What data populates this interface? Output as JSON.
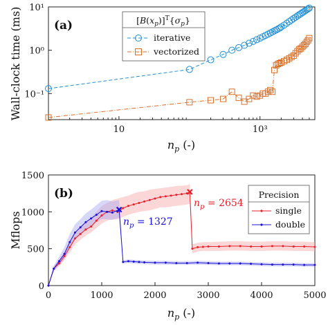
{
  "figure": {
    "panels": [
      {
        "panel_label": "(a)",
        "ylabel": "Wall-clock time (ms)",
        "xlabel": "n_p (-)",
        "legend_title": "[B(x_p)]^T{σ_p}",
        "x_ticks": [
          "10",
          "10³"
        ],
        "x_tick_values": [
          10,
          1000
        ],
        "y_ticks": [
          "10⁻¹",
          "10⁰",
          "10¹"
        ],
        "y_tick_values": [
          0.1,
          1,
          10
        ]
      },
      {
        "panel_label": "(b)",
        "ylabel": "Mflops",
        "xlabel": "n_p (-)",
        "legend_title": "Precision",
        "x_ticks": [
          "0",
          "1000",
          "2000",
          "3000",
          "4000",
          "5000"
        ],
        "y_ticks": [
          "0",
          "500",
          "1000",
          "1500"
        ],
        "annotations": [
          {
            "text": "n_p = 1327",
            "color": "#1a10d8"
          },
          {
            "text": "n_p = 2654",
            "color": "#e8202a"
          }
        ]
      }
    ]
  },
  "chart_data": [
    {
      "type": "line",
      "panel": "(a)",
      "xscale": "log",
      "yscale": "log",
      "xlim": [
        1,
        6000
      ],
      "ylim": [
        0.025,
        10
      ],
      "xlabel": "n_p (-)",
      "ylabel": "Wall-clock time (ms)",
      "legend_title": "[B(x_p)]^T{σ_p}",
      "legend_position": "top-left",
      "series": [
        {
          "name": "iterative",
          "color": "#1f8fd6",
          "marker": "circle",
          "x": [
            1,
            100,
            200,
            300,
            400,
            500,
            600,
            700,
            800,
            900,
            1000,
            1100,
            1200,
            1300,
            1400,
            1500,
            1600,
            1700,
            1800,
            1900,
            2000,
            2200,
            2400,
            2600,
            2800,
            3000,
            3200,
            3400,
            3600,
            3800,
            4000,
            4200,
            4400,
            4600,
            4800,
            5000
          ],
          "y": [
            0.13,
            0.36,
            0.6,
            0.8,
            1.0,
            1.15,
            1.3,
            1.45,
            1.6,
            1.75,
            1.9,
            2.05,
            2.2,
            2.35,
            2.5,
            2.65,
            2.8,
            2.95,
            3.1,
            3.25,
            3.45,
            3.8,
            4.2,
            4.6,
            5.0,
            5.4,
            5.8,
            6.2,
            6.6,
            7.0,
            7.4,
            7.8,
            8.2,
            8.6,
            9.0,
            9.4
          ]
        },
        {
          "name": "vectorized",
          "color": "#d9702a",
          "marker": "square",
          "x": [
            1,
            100,
            200,
            300,
            400,
            500,
            600,
            700,
            800,
            900,
            1000,
            1100,
            1200,
            1300,
            1400,
            1500,
            1600,
            1700,
            1800,
            1900,
            2000,
            2200,
            2400,
            2600,
            2800,
            3000,
            3200,
            3400,
            3600,
            3800,
            4000,
            4200,
            4400,
            4600,
            4800,
            5000
          ],
          "y": [
            0.028,
            0.063,
            0.07,
            0.075,
            0.11,
            0.08,
            0.065,
            0.075,
            0.09,
            0.085,
            0.09,
            0.1,
            0.1,
            0.11,
            0.12,
            0.11,
            0.35,
            0.45,
            0.48,
            0.5,
            0.52,
            0.56,
            0.6,
            0.65,
            0.7,
            0.75,
            0.85,
            0.95,
            1.05,
            1.1,
            1.2,
            1.3,
            1.4,
            1.55,
            1.7,
            1.9
          ]
        }
      ]
    },
    {
      "type": "line",
      "panel": "(b)",
      "xlim": [
        0,
        5000
      ],
      "ylim": [
        0,
        1500
      ],
      "xlabel": "n_p (-)",
      "ylabel": "Mflops",
      "legend_title": "Precision",
      "legend_position": "right",
      "series": [
        {
          "name": "single",
          "color": "#e8202a",
          "band_color": "#f7a6a6",
          "x": [
            0,
            100,
            200,
            300,
            400,
            500,
            600,
            700,
            800,
            900,
            1000,
            1100,
            1200,
            1300,
            1400,
            1500,
            1600,
            1700,
            1800,
            1900,
            2000,
            2100,
            2200,
            2300,
            2400,
            2500,
            2600,
            2654,
            2700,
            2800,
            2900,
            3000,
            3200,
            3400,
            3600,
            3800,
            4000,
            4200,
            4400,
            4600,
            4800,
            5000
          ],
          "y": [
            0,
            230,
            300,
            400,
            520,
            640,
            700,
            760,
            800,
            880,
            950,
            1000,
            1020,
            1000,
            1050,
            1080,
            1100,
            1120,
            1140,
            1160,
            1180,
            1200,
            1210,
            1220,
            1230,
            1240,
            1250,
            1270,
            500,
            520,
            525,
            530,
            530,
            535,
            535,
            530,
            530,
            535,
            535,
            530,
            530,
            525
          ],
          "band_lower": [
            0,
            200,
            260,
            350,
            450,
            560,
            620,
            680,
            720,
            780,
            840,
            880,
            900,
            900,
            930,
            960,
            980,
            1000,
            1010,
            1020,
            1040,
            1060,
            1060,
            1070,
            1080,
            1090,
            1100,
            1110,
            440,
            460,
            470,
            470,
            470,
            475,
            475,
            470,
            470,
            475,
            475,
            470,
            470,
            465
          ],
          "band_upper": [
            0,
            260,
            350,
            460,
            600,
            720,
            800,
            860,
            920,
            1000,
            1080,
            1120,
            1160,
            1180,
            1200,
            1220,
            1250,
            1270,
            1280,
            1300,
            1310,
            1320,
            1330,
            1340,
            1350,
            1355,
            1360,
            1380,
            560,
            580,
            590,
            590,
            595,
            600,
            600,
            595,
            595,
            600,
            600,
            595,
            595,
            590
          ],
          "peak_marker": {
            "x": 2654,
            "y": 1270
          }
        },
        {
          "name": "double",
          "color": "#1a10d8",
          "band_color": "#a7a7f5",
          "x": [
            0,
            100,
            200,
            300,
            400,
            500,
            600,
            700,
            800,
            900,
            1000,
            1100,
            1200,
            1327,
            1400,
            1500,
            1600,
            1700,
            1800,
            2000,
            2200,
            2400,
            2600,
            2800,
            3000,
            3200,
            3400,
            3600,
            3800,
            4000,
            4200,
            4400,
            4600,
            4800,
            5000
          ],
          "y": [
            0,
            230,
            330,
            430,
            590,
            720,
            790,
            860,
            910,
            960,
            1010,
            1000,
            990,
            1030,
            320,
            330,
            325,
            320,
            315,
            310,
            310,
            305,
            305,
            310,
            305,
            300,
            300,
            300,
            295,
            290,
            285,
            285,
            285,
            280,
            280
          ],
          "band_lower": [
            0,
            190,
            280,
            360,
            500,
            620,
            690,
            760,
            810,
            860,
            900,
            900,
            890,
            920,
            300,
            305,
            300,
            295,
            290,
            285,
            285,
            280,
            280,
            285,
            280,
            275,
            275,
            275,
            270,
            265,
            260,
            260,
            260,
            255,
            255
          ],
          "band_upper": [
            0,
            270,
            390,
            520,
            700,
            830,
            900,
            980,
            1030,
            1090,
            1150,
            1160,
            1140,
            1160,
            345,
            355,
            350,
            345,
            340,
            335,
            335,
            330,
            330,
            335,
            330,
            325,
            325,
            325,
            320,
            315,
            310,
            310,
            310,
            305,
            305
          ],
          "peak_marker": {
            "x": 1327,
            "y": 1030
          }
        }
      ]
    }
  ]
}
